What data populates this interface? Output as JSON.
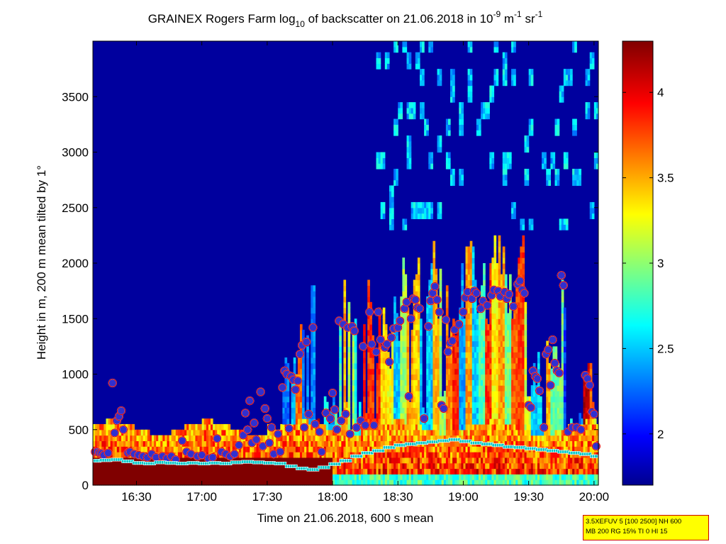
{
  "chart_data": {
    "type": "heatmap",
    "title": {
      "part1": "GRAINEX Rogers Farm log",
      "sub1": "10",
      "part2": " of backscatter on 21.06.2018 in 10",
      "sup1": "-9",
      "part3": " m",
      "sup2": "-1",
      "part4": " sr",
      "sup3": "-1"
    },
    "xlabel": "Time on 21.06.2018, 600 s mean",
    "ylabel": "Height in m, 200 m mean tilted by 1°",
    "x_ticks": [
      "16:30",
      "17:00",
      "17:30",
      "18:00",
      "18:30",
      "19:00",
      "19:30",
      "20:00"
    ],
    "x_range": [
      "16:10",
      "20:02"
    ],
    "y_ticks": [
      0,
      500,
      1000,
      1500,
      2000,
      2500,
      3000,
      3500
    ],
    "ylim": [
      0,
      4000
    ],
    "colorbar": {
      "ticks": [
        "2",
        "2.5",
        "3",
        "3.5",
        "4"
      ],
      "range": [
        1.7,
        4.3
      ],
      "colormap": "jet"
    },
    "heatmap_note": "backscatter field: high (~4.3) below ~250 m until 18:00, aerosol layer up to ~500-600 m, convective plumes to ~1800 m after 17:30, low values (~1.7) aloft, scattered clouds 2300-3900 m after 18:20",
    "series": [
      {
        "name": "",
        "marker": "circle",
        "color": "#dd0000",
        "points": [
          [
            "16:11",
            300
          ],
          [
            "16:12",
            300
          ],
          [
            "16:13",
            290
          ],
          [
            "16:14",
            285
          ],
          [
            "16:15",
            270
          ],
          [
            "16:17",
            290
          ],
          [
            "16:19",
            920
          ],
          [
            "16:20",
            470
          ],
          [
            "16:21",
            580
          ],
          [
            "16:22",
            620
          ],
          [
            "16:23",
            670
          ],
          [
            "16:24",
            500
          ],
          [
            "16:26",
            290
          ],
          [
            "16:27",
            300
          ],
          [
            "16:29",
            280
          ],
          [
            "16:31",
            270
          ],
          [
            "16:33",
            260
          ],
          [
            "16:35",
            250
          ],
          [
            "16:37",
            280
          ],
          [
            "16:39",
            250
          ],
          [
            "16:42",
            260
          ],
          [
            "16:44",
            240
          ],
          [
            "16:46",
            260
          ],
          [
            "16:48",
            230
          ],
          [
            "16:51",
            400
          ],
          [
            "16:53",
            300
          ],
          [
            "16:55",
            280
          ],
          [
            "16:58",
            260
          ],
          [
            "17:00",
            270
          ],
          [
            "17:03",
            240
          ],
          [
            "17:05",
            250
          ],
          [
            "17:07",
            420
          ],
          [
            "17:09",
            300
          ],
          [
            "17:11",
            280
          ],
          [
            "17:13",
            260
          ],
          [
            "17:15",
            280
          ],
          [
            "17:17",
            360
          ],
          [
            "17:19",
            450
          ],
          [
            "17:20",
            650
          ],
          [
            "17:21",
            500
          ],
          [
            "17:22",
            760
          ],
          [
            "17:23",
            380
          ],
          [
            "17:24",
            560
          ],
          [
            "17:25",
            410
          ],
          [
            "17:27",
            840
          ],
          [
            "17:28",
            350
          ],
          [
            "17:29",
            690
          ],
          [
            "17:30",
            600
          ],
          [
            "17:31",
            380
          ],
          [
            "17:32",
            520
          ],
          [
            "17:33",
            280
          ],
          [
            "17:35",
            460
          ],
          [
            "17:36",
            300
          ],
          [
            "17:37",
            880
          ],
          [
            "17:38",
            1030
          ],
          [
            "17:39",
            1000
          ],
          [
            "17:40",
            510
          ],
          [
            "17:41",
            980
          ],
          [
            "17:42",
            950
          ],
          [
            "17:43",
            860
          ],
          [
            "17:44",
            940
          ],
          [
            "17:45",
            1180
          ],
          [
            "17:46",
            1260
          ],
          [
            "17:47",
            520
          ],
          [
            "17:48",
            1290
          ],
          [
            "17:49",
            640
          ],
          [
            "17:51",
            1420
          ],
          [
            "17:52",
            550
          ],
          [
            "17:54",
            480
          ],
          [
            "17:55",
            300
          ],
          [
            "17:57",
            650
          ],
          [
            "17:59",
            600
          ],
          [
            "18:00",
            830
          ],
          [
            "18:01",
            680
          ],
          [
            "18:02",
            500
          ],
          [
            "18:03",
            1480
          ],
          [
            "18:04",
            580
          ],
          [
            "18:05",
            1450
          ],
          [
            "18:06",
            640
          ],
          [
            "18:07",
            1420
          ],
          [
            "18:08",
            460
          ],
          [
            "18:09",
            1430
          ],
          [
            "18:10",
            1390
          ],
          [
            "18:11",
            520
          ],
          [
            "18:13",
            580
          ],
          [
            "18:14",
            1250
          ],
          [
            "18:15",
            540
          ],
          [
            "18:17",
            1560
          ],
          [
            "18:18",
            1270
          ],
          [
            "18:19",
            540
          ],
          [
            "18:20",
            1200
          ],
          [
            "18:21",
            1560
          ],
          [
            "18:22",
            1310
          ],
          [
            "18:24",
            1240
          ],
          [
            "18:25",
            1270
          ],
          [
            "18:26",
            1110
          ],
          [
            "18:27",
            1330
          ],
          [
            "18:28",
            1410
          ],
          [
            "18:30",
            1420
          ],
          [
            "18:31",
            1480
          ],
          [
            "18:33",
            1590
          ],
          [
            "18:34",
            1650
          ],
          [
            "18:35",
            800
          ],
          [
            "18:36",
            1500
          ],
          [
            "18:37",
            1680
          ],
          [
            "18:38",
            1670
          ],
          [
            "18:39",
            1600
          ],
          [
            "18:40",
            1590
          ],
          [
            "18:42",
            600
          ],
          [
            "18:44",
            1430
          ],
          [
            "18:45",
            1660
          ],
          [
            "18:46",
            1730
          ],
          [
            "18:47",
            1790
          ],
          [
            "18:48",
            1670
          ],
          [
            "18:49",
            1560
          ],
          [
            "18:50",
            720
          ],
          [
            "18:51",
            690
          ],
          [
            "18:52",
            1490
          ],
          [
            "18:53",
            1200
          ],
          [
            "18:54",
            1280
          ],
          [
            "18:55",
            1300
          ],
          [
            "18:56",
            1400
          ],
          [
            "18:58",
            1450
          ],
          [
            "19:00",
            1560
          ],
          [
            "19:01",
            1690
          ],
          [
            "19:02",
            1740
          ],
          [
            "19:04",
            1680
          ],
          [
            "19:05",
            1750
          ],
          [
            "19:06",
            1730
          ],
          [
            "19:08",
            1590
          ],
          [
            "19:09",
            1660
          ],
          [
            "19:11",
            1620
          ],
          [
            "19:13",
            1710
          ],
          [
            "19:14",
            1760
          ],
          [
            "19:16",
            1750
          ],
          [
            "19:17",
            1700
          ],
          [
            "19:19",
            1740
          ],
          [
            "19:20",
            1680
          ],
          [
            "19:21",
            1720
          ],
          [
            "19:23",
            1610
          ],
          [
            "19:25",
            1810
          ],
          [
            "19:26",
            1840
          ],
          [
            "19:27",
            1760
          ],
          [
            "19:28",
            1730
          ],
          [
            "19:30",
            720
          ],
          [
            "19:31",
            700
          ],
          [
            "19:32",
            1030
          ],
          [
            "19:33",
            980
          ],
          [
            "19:34",
            960
          ],
          [
            "19:35",
            850
          ],
          [
            "19:37",
            520
          ],
          [
            "19:38",
            1180
          ],
          [
            "19:39",
            1220
          ],
          [
            "19:40",
            900
          ],
          [
            "19:41",
            1310
          ],
          [
            "19:42",
            1100
          ],
          [
            "19:43",
            1030
          ],
          [
            "19:44",
            1010
          ],
          [
            "19:45",
            1890
          ],
          [
            "19:46",
            1800
          ],
          [
            "19:48",
            480
          ],
          [
            "19:50",
            520
          ],
          [
            "19:52",
            520
          ],
          [
            "19:54",
            500
          ],
          [
            "19:56",
            990
          ],
          [
            "19:57",
            960
          ],
          [
            "19:58",
            900
          ],
          [
            "19:59",
            660
          ],
          [
            "20:00",
            640
          ],
          [
            "20:01",
            350
          ]
        ]
      },
      {
        "name": "",
        "marker": "square",
        "color": "#00c8c8",
        "points": [
          [
            "16:11",
            220
          ],
          [
            "16:16",
            225
          ],
          [
            "16:21",
            230
          ],
          [
            "16:26",
            215
          ],
          [
            "16:31",
            200
          ],
          [
            "16:36",
            195
          ],
          [
            "16:41",
            205
          ],
          [
            "16:46",
            200
          ],
          [
            "16:51",
            195
          ],
          [
            "16:56",
            200
          ],
          [
            "17:01",
            195
          ],
          [
            "17:06",
            200
          ],
          [
            "17:11",
            195
          ],
          [
            "17:16",
            205
          ],
          [
            "17:21",
            210
          ],
          [
            "17:26",
            205
          ],
          [
            "17:31",
            200
          ],
          [
            "17:36",
            195
          ],
          [
            "17:41",
            170
          ],
          [
            "17:46",
            150
          ],
          [
            "17:51",
            140
          ],
          [
            "17:56",
            160
          ],
          [
            "18:01",
            190
          ],
          [
            "18:06",
            220
          ],
          [
            "18:11",
            260
          ],
          [
            "18:16",
            290
          ],
          [
            "18:21",
            310
          ],
          [
            "18:26",
            340
          ],
          [
            "18:31",
            360
          ],
          [
            "18:36",
            370
          ],
          [
            "18:41",
            380
          ],
          [
            "18:46",
            390
          ],
          [
            "18:51",
            400
          ],
          [
            "18:56",
            410
          ],
          [
            "19:01",
            395
          ],
          [
            "19:06",
            380
          ],
          [
            "19:11",
            370
          ],
          [
            "19:16",
            360
          ],
          [
            "19:21",
            345
          ],
          [
            "19:26",
            340
          ],
          [
            "19:31",
            330
          ],
          [
            "19:36",
            320
          ],
          [
            "19:41",
            310
          ],
          [
            "19:46",
            300
          ],
          [
            "19:51",
            290
          ],
          [
            "19:56",
            280
          ],
          [
            "20:01",
            260
          ]
        ]
      }
    ]
  },
  "info_box": {
    "line1": "3.5XEFUV 5 [100 2500] NH 600",
    "line2": "MB 200 RG 15% TI 0 HI 15"
  }
}
